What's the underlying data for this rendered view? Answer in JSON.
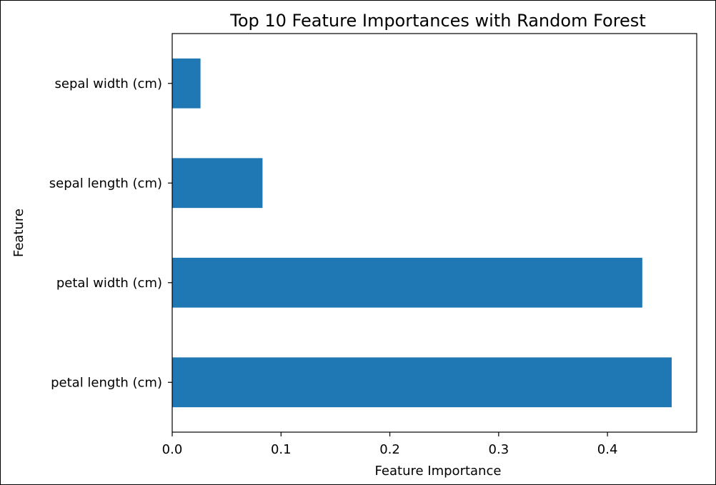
{
  "chart_data": {
    "type": "bar",
    "orientation": "horizontal",
    "title": "Top 10 Feature Importances with Random Forest",
    "xlabel": "Feature Importance",
    "ylabel": "Feature",
    "categories": [
      "petal length (cm)",
      "petal width (cm)",
      "sepal length (cm)",
      "sepal width (cm)"
    ],
    "values": [
      0.459,
      0.432,
      0.083,
      0.026
    ],
    "xlim": [
      0.0,
      0.482
    ],
    "xticks": [
      "0.0",
      "0.1",
      "0.2",
      "0.3",
      "0.4"
    ],
    "xtick_values": [
      0.0,
      0.1,
      0.2,
      0.3,
      0.4
    ],
    "bar_color": "#1f77b4",
    "grid": false,
    "legend": "none"
  }
}
